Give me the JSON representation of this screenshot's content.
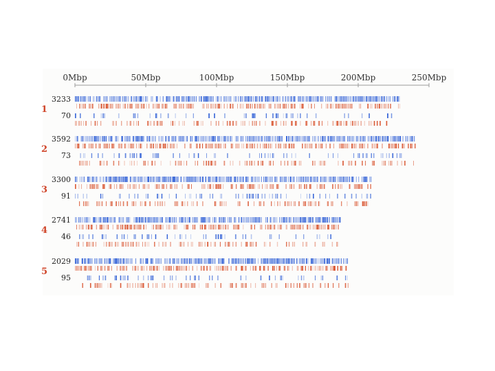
{
  "axis": {
    "ticks": [
      {
        "label": "0Mbp",
        "value": 0
      },
      {
        "label": "50Mbp",
        "value": 50
      },
      {
        "label": "100Mbp",
        "value": 100
      },
      {
        "label": "150Mbp",
        "value": 150
      },
      {
        "label": "200Mbp",
        "value": 200
      },
      {
        "label": "250Mbp",
        "value": 250
      }
    ],
    "range": [
      0,
      250
    ]
  },
  "colors": {
    "blue": "#2f5fd6",
    "red": "#d9542f",
    "axis": "#9a9a9a",
    "label": "#d0452a"
  },
  "chromosomes": [
    {
      "label": "1",
      "length": 230,
      "count_top": "3233",
      "count_bottom": "70"
    },
    {
      "label": "2",
      "length": 240,
      "count_top": "3592",
      "count_bottom": "73"
    },
    {
      "label": "3",
      "length": 209,
      "count_top": "3300",
      "count_bottom": "91"
    },
    {
      "label": "4",
      "length": 187,
      "count_top": "2741",
      "count_bottom": "46"
    },
    {
      "label": "5",
      "length": 193,
      "count_top": "2029",
      "count_bottom": "95"
    }
  ]
}
